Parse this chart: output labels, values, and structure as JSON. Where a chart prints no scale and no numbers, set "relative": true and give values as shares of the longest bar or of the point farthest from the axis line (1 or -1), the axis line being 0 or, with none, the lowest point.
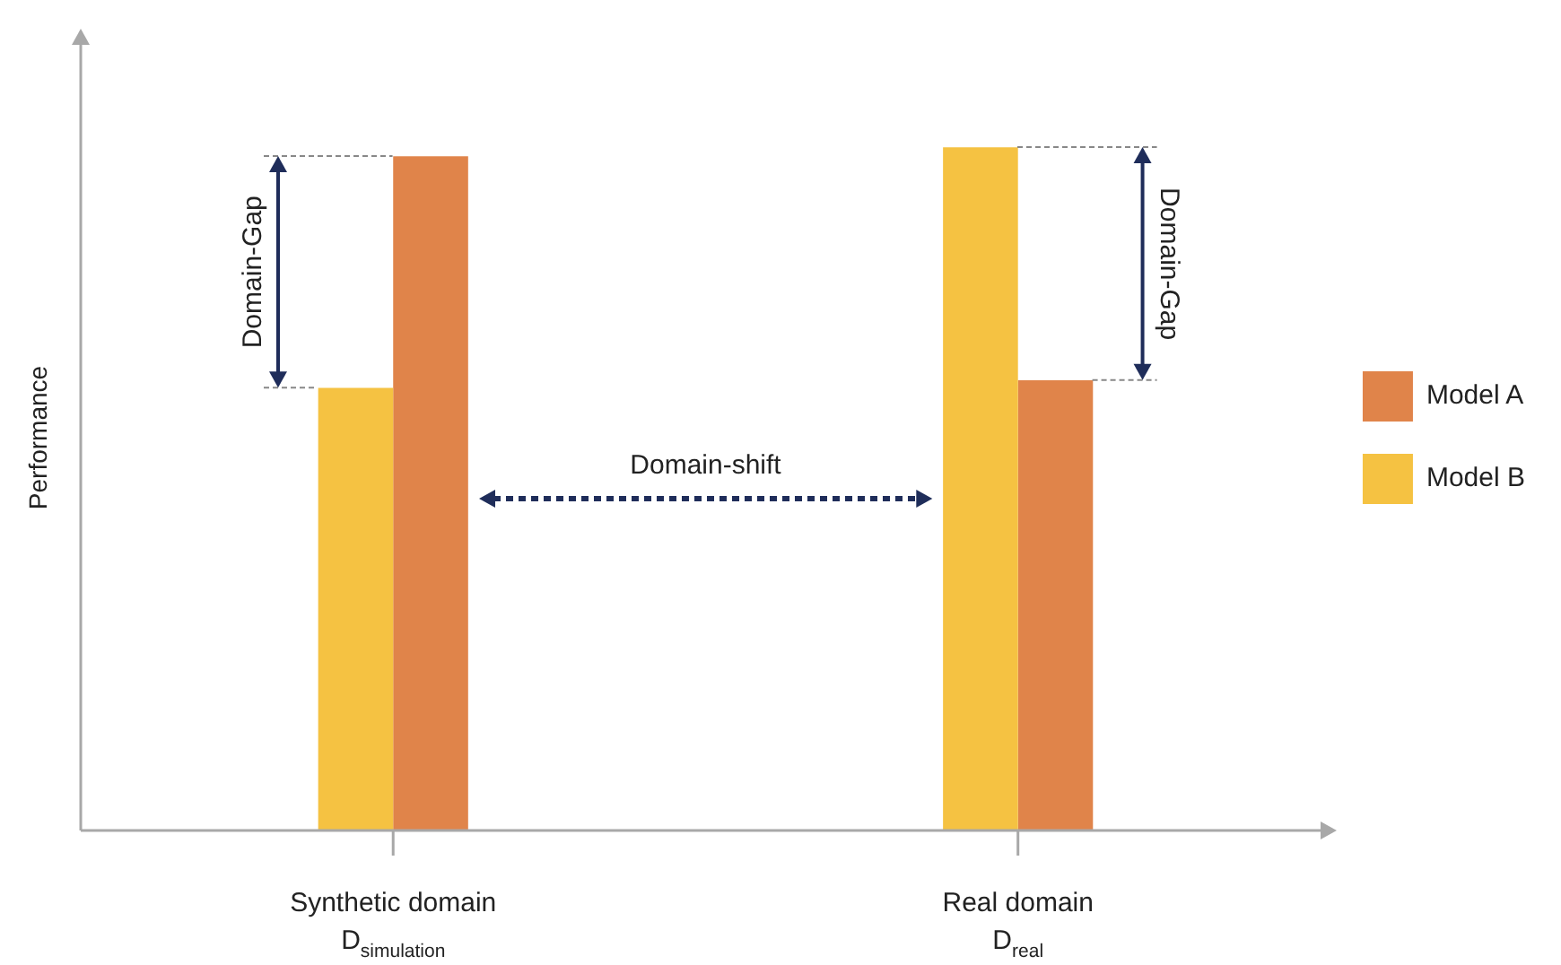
{
  "chart_data": {
    "type": "bar",
    "relative": true,
    "ylabel": "Performance",
    "categories": [
      "Synthetic domain D$_{simulation}$",
      "Real domain D$_{real}$"
    ],
    "series": [
      {
        "name": "Model B",
        "color": "#f5c242",
        "values": [
          0.648,
          1
        ]
      },
      {
        "name": "Model A",
        "color": "#e0844a",
        "values": [
          0.987,
          0.659
        ]
      }
    ],
    "annotations": [
      "Domain-Gap",
      "Domain-shift",
      "Domain-Gap"
    ],
    "legend": "right",
    "grid": false,
    "tick_labels": "x"
  }
}
